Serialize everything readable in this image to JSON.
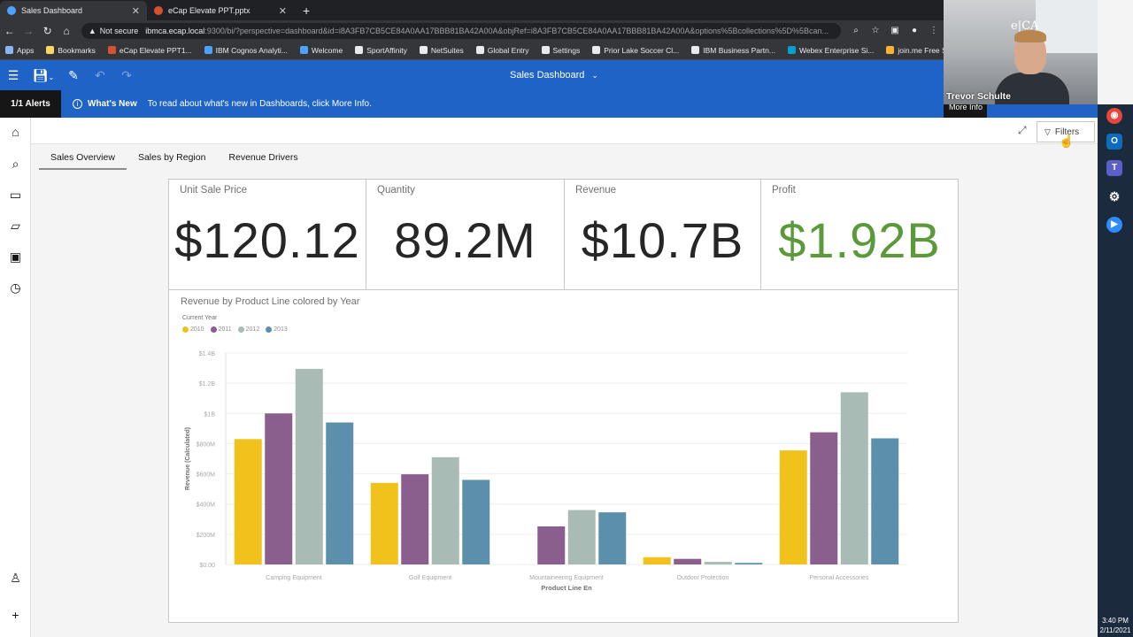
{
  "browser": {
    "tabs": [
      {
        "title": "Sales Dashboard",
        "active": true,
        "icon": "cognos-icon",
        "color": "#4da1ff"
      },
      {
        "title": "eCap Elevate PPT.pptx",
        "active": false,
        "icon": "powerpoint-icon",
        "color": "#d35230"
      }
    ],
    "new_tab": "+",
    "security": "Not secure",
    "url_host": "ibmca.ecap.local",
    "url_rest": ":9300/bi/?perspective=dashboard&id=i8A3FB7CB5CE84A0AA17BBB81BA42A00A&objRef=i8A3FB7CB5CE84A0AA17BBB81BA42A00A&options%5Bcollections%5D%5Bcan...",
    "bookmarks": [
      {
        "label": "Apps",
        "color": "#8ab4f8"
      },
      {
        "label": "Bookmarks",
        "color": "#fdd663"
      },
      {
        "label": "eCap Elevate PPT1...",
        "color": "#d35230"
      },
      {
        "label": "IBM Cognos Analyti...",
        "color": "#4da1ff"
      },
      {
        "label": "Welcome",
        "color": "#4da1ff"
      },
      {
        "label": "SportAffinity",
        "color": "#e8eaed"
      },
      {
        "label": "NetSuites",
        "color": "#e8eaed"
      },
      {
        "label": "Global Entry",
        "color": "#e8eaed"
      },
      {
        "label": "Settings",
        "color": "#e8eaed"
      },
      {
        "label": "Prior Lake Soccer Cl...",
        "color": "#e8eaed"
      },
      {
        "label": "IBM Business Partn...",
        "color": "#e8eaed"
      },
      {
        "label": "Webex Enterprise Si...",
        "color": "#00a0d1"
      },
      {
        "label": "join.me Free Screen...",
        "color": "#f9b233"
      }
    ]
  },
  "app": {
    "title": "Sales Dashboard",
    "alerts_count": "1/1 Alerts",
    "whats_new": "What's New",
    "alert_message": "To read about what's new in Dashboards, click More Info.",
    "more_info": "More Info",
    "filters_label": "Filters",
    "tabs": [
      "Sales Overview",
      "Sales by Region",
      "Revenue Drivers"
    ],
    "active_tab": 0
  },
  "kpis": [
    {
      "label": "Unit Sale Price",
      "value": "$120.12",
      "color": "#262626"
    },
    {
      "label": "Quantity",
      "value": "89.2M",
      "color": "#262626"
    },
    {
      "label": "Revenue",
      "value": "$10.7B",
      "color": "#262626"
    },
    {
      "label": "Profit",
      "value": "$1.92B",
      "color": "#5a9a3a"
    }
  ],
  "chart_data": {
    "type": "bar",
    "title": "Revenue by Product Line colored by Year",
    "legend_title": "Current Year",
    "legend_position": "top-left",
    "xlabel": "Product Line En",
    "ylabel": "Revenue (Calculated)",
    "ylim": [
      0,
      1400000000
    ],
    "yticks": [
      0,
      200000000,
      400000000,
      600000000,
      800000000,
      1000000000,
      1200000000,
      1400000000
    ],
    "ytick_labels": [
      "$0.00",
      "$200M",
      "$400M",
      "$600M",
      "$800M",
      "$1B",
      "$1.2B",
      "$1.4B"
    ],
    "grid": true,
    "categories": [
      "Camping Equipment",
      "Golf Equipment",
      "Mountaineering Equipment",
      "Outdoor Protection",
      "Personal Accessories"
    ],
    "series": [
      {
        "name": "2010",
        "color": "#f1c21b",
        "values": [
          830000000,
          540000000,
          0,
          48000000,
          755000000
        ]
      },
      {
        "name": "2011",
        "color": "#8a5f8e",
        "values": [
          1000000000,
          597000000,
          252000000,
          37000000,
          875000000
        ]
      },
      {
        "name": "2012",
        "color": "#a9bbb5",
        "values": [
          1295000000,
          710000000,
          360000000,
          17000000,
          1140000000
        ]
      },
      {
        "name": "2013",
        "color": "#5b8fac",
        "values": [
          940000000,
          560000000,
          345000000,
          10000000,
          835000000
        ]
      }
    ]
  },
  "webcam": {
    "name": "Trevor Schulte",
    "logo": "e|CA"
  },
  "clock": {
    "time": "3:40 PM",
    "date": "2/11/2021"
  }
}
